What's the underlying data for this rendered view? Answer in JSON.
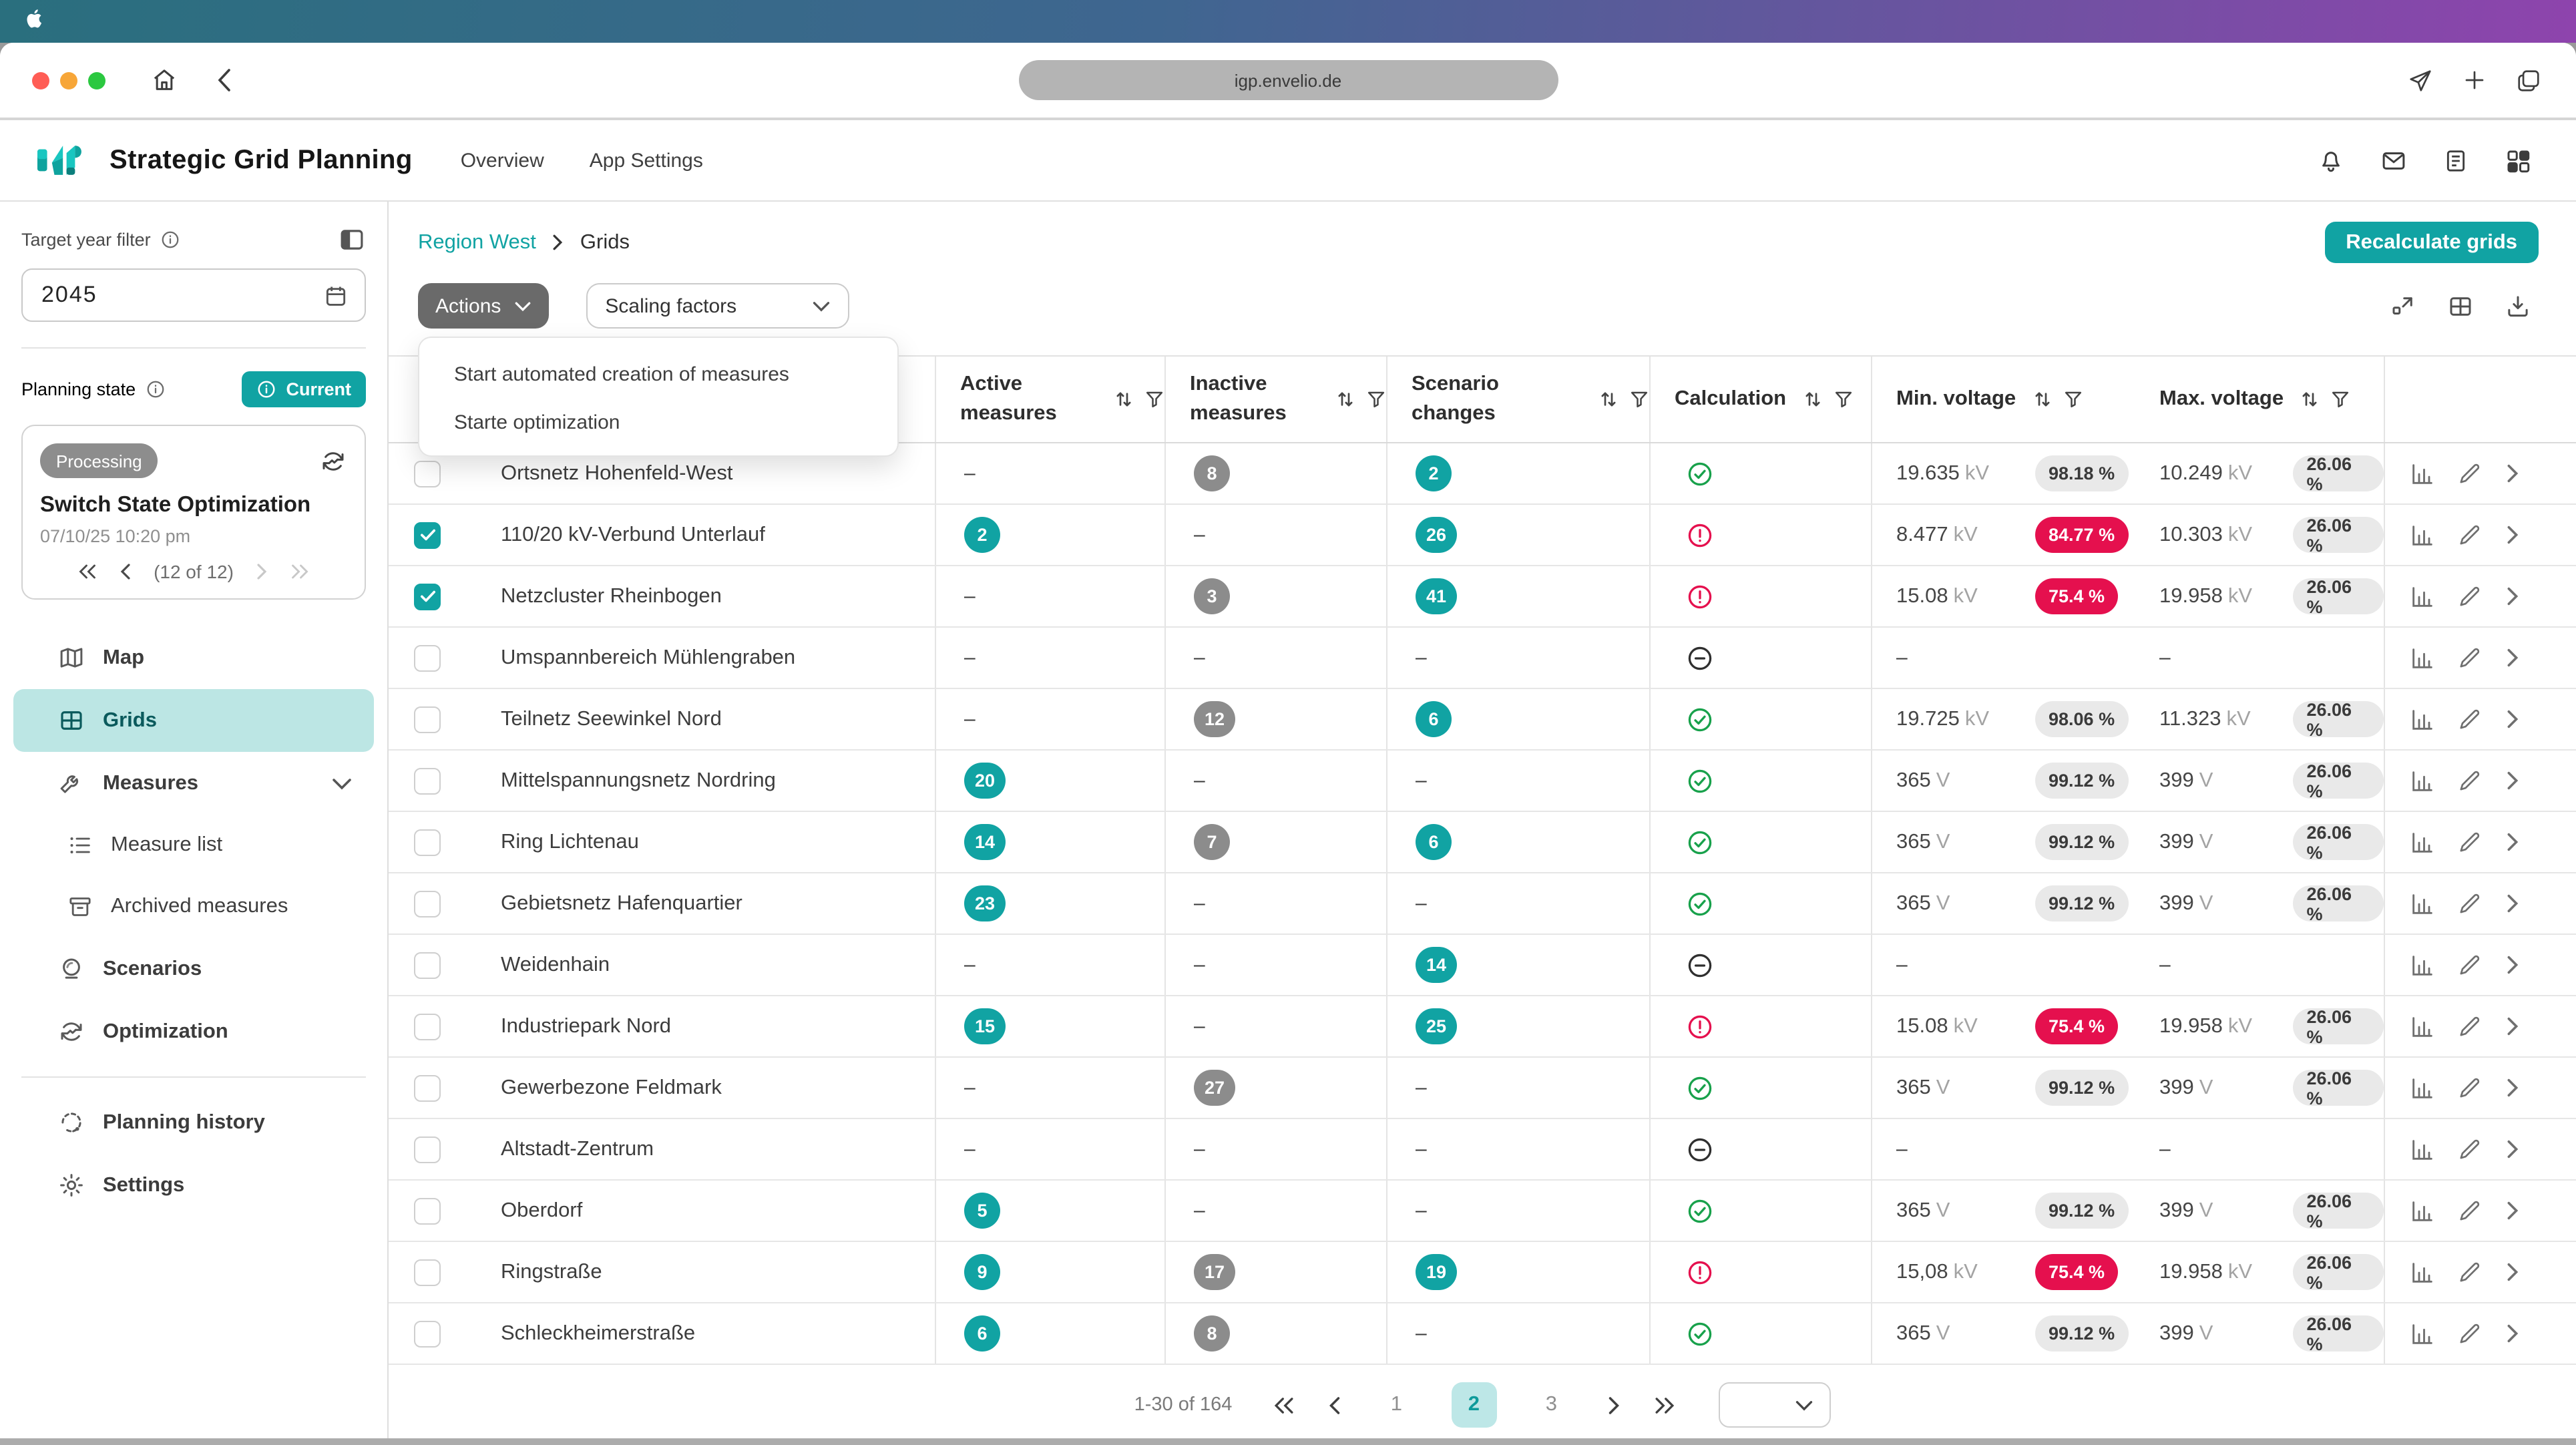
{
  "colors": {
    "accent": "#11a3a3",
    "accent_light": "#bce6e4",
    "red": "#e5104e",
    "green": "#18a14b",
    "gray_badge": "#8c8c8c",
    "menubar_gradient_left": "#2a6f7e",
    "menubar_gradient_right": "#8e44ad"
  },
  "browser": {
    "url": "igp.envelio.de"
  },
  "app_header": {
    "title": "Strategic Grid Planning",
    "nav": [
      {
        "label": "Overview"
      },
      {
        "label": "App Settings"
      }
    ]
  },
  "sidebar": {
    "target_year_label": "Target year filter",
    "target_year_value": "2045",
    "planning_state_label": "Planning state",
    "current_badge_label": "Current",
    "card": {
      "status": "Processing",
      "title": "Switch State Optimization",
      "date": "07/10/25 10:20 pm",
      "pager_count": "(12 of 12)"
    },
    "items": [
      {
        "label": "Map"
      },
      {
        "label": "Grids"
      },
      {
        "label": "Measures"
      },
      {
        "label": "Measure list"
      },
      {
        "label": "Archived measures"
      },
      {
        "label": "Scenarios"
      },
      {
        "label": "Optimization"
      },
      {
        "label": "Planning history"
      },
      {
        "label": "Settings"
      }
    ]
  },
  "main": {
    "breadcrumb": {
      "root": "Region West",
      "current": "Grids"
    },
    "recalculate_label": "Recalculate grids",
    "actions_label": "Actions",
    "scaling_label": "Scaling factors",
    "actions_menu": [
      {
        "label": "Start automated creation of measures"
      },
      {
        "label": "Starte optimization"
      }
    ],
    "columns": [
      {
        "label": "Active measures"
      },
      {
        "label": "Inactive measures"
      },
      {
        "label": "Scenario changes"
      },
      {
        "label": "Calculation"
      },
      {
        "label": "Min. voltage"
      },
      {
        "label": "Max. voltage"
      }
    ],
    "rows": [
      {
        "name": "Ortsnetz Hohenfeld-West",
        "checked": false,
        "active": null,
        "inactive": "8",
        "scenario": "2",
        "calc": "ok",
        "min": {
          "value": "19.635",
          "unit": "kV",
          "pct": "98.18 %",
          "alert": false
        },
        "max": {
          "value": "10.249",
          "unit": "kV",
          "pct": "26.06 %"
        }
      },
      {
        "name": "110/20 kV-Verbund Unterlauf",
        "checked": true,
        "active": "2",
        "inactive": null,
        "scenario": "26",
        "calc": "error",
        "min": {
          "value": "8.477",
          "unit": "kV",
          "pct": "84.77 %",
          "alert": true
        },
        "max": {
          "value": "10.303",
          "unit": "kV",
          "pct": "26.06 %"
        }
      },
      {
        "name": "Netzcluster Rheinbogen",
        "checked": true,
        "active": null,
        "inactive": "3",
        "scenario": "41",
        "calc": "error",
        "min": {
          "value": "15.08",
          "unit": "kV",
          "pct": "75.4 %",
          "alert": true
        },
        "max": {
          "value": "19.958",
          "unit": "kV",
          "pct": "26.06 %"
        }
      },
      {
        "name": "Umspannbereich Mühlengraben",
        "checked": false,
        "active": null,
        "inactive": null,
        "scenario": null,
        "calc": "none",
        "min": null,
        "max": null
      },
      {
        "name": "Teilnetz Seewinkel Nord",
        "checked": false,
        "active": null,
        "inactive": "12",
        "scenario": "6",
        "calc": "ok",
        "min": {
          "value": "19.725",
          "unit": "kV",
          "pct": "98.06 %",
          "alert": false
        },
        "max": {
          "value": "11.323",
          "unit": "kV",
          "pct": "26.06 %"
        }
      },
      {
        "name": "Mittelspannungsnetz Nordring",
        "checked": false,
        "active": "20",
        "inactive": null,
        "scenario": null,
        "calc": "ok",
        "min": {
          "value": "365",
          "unit": "V",
          "pct": "99.12 %",
          "alert": false
        },
        "max": {
          "value": "399",
          "unit": "V",
          "pct": "26.06 %"
        }
      },
      {
        "name": "Ring Lichtenau",
        "checked": false,
        "active": "14",
        "inactive": "7",
        "scenario": "6",
        "calc": "ok",
        "min": {
          "value": "365",
          "unit": "V",
          "pct": "99.12 %",
          "alert": false
        },
        "max": {
          "value": "399",
          "unit": "V",
          "pct": "26.06 %"
        }
      },
      {
        "name": "Gebietsnetz Hafenquartier",
        "checked": false,
        "active": "23",
        "inactive": null,
        "scenario": null,
        "calc": "ok",
        "min": {
          "value": "365",
          "unit": "V",
          "pct": "99.12 %",
          "alert": false
        },
        "max": {
          "value": "399",
          "unit": "V",
          "pct": "26.06 %"
        }
      },
      {
        "name": "Weidenhain",
        "checked": false,
        "active": null,
        "inactive": null,
        "scenario": "14",
        "calc": "none",
        "min": null,
        "max": null
      },
      {
        "name": "Industriepark Nord",
        "checked": false,
        "active": "15",
        "inactive": null,
        "scenario": "25",
        "calc": "error",
        "min": {
          "value": "15.08",
          "unit": "kV",
          "pct": "75.4 %",
          "alert": true
        },
        "max": {
          "value": "19.958",
          "unit": "kV",
          "pct": "26.06 %"
        }
      },
      {
        "name": "Gewerbezone Feldmark",
        "checked": false,
        "active": null,
        "inactive": "27",
        "scenario": null,
        "calc": "ok",
        "min": {
          "value": "365",
          "unit": "V",
          "pct": "99.12 %",
          "alert": false
        },
        "max": {
          "value": "399",
          "unit": "V",
          "pct": "26.06 %"
        }
      },
      {
        "name": "Altstadt-Zentrum",
        "checked": false,
        "active": null,
        "inactive": null,
        "scenario": null,
        "calc": "none",
        "min": null,
        "max": null
      },
      {
        "name": "Oberdorf",
        "checked": false,
        "active": "5",
        "inactive": null,
        "scenario": null,
        "calc": "ok",
        "min": {
          "value": "365",
          "unit": "V",
          "pct": "99.12 %",
          "alert": false
        },
        "max": {
          "value": "399",
          "unit": "V",
          "pct": "26.06 %"
        }
      },
      {
        "name": "Ringstraße",
        "checked": false,
        "active": "9",
        "inactive": "17",
        "scenario": "19",
        "calc": "error",
        "min": {
          "value": "15,08",
          "unit": "kV",
          "pct": "75.4 %",
          "alert": true
        },
        "max": {
          "value": "19.958",
          "unit": "kV",
          "pct": "26.06 %"
        }
      },
      {
        "name": "Schleckheimerstraße",
        "checked": false,
        "active": "6",
        "inactive": "8",
        "scenario": null,
        "calc": "ok",
        "min": {
          "value": "365",
          "unit": "V",
          "pct": "99.12 %",
          "alert": false
        },
        "max": {
          "value": "399",
          "unit": "V",
          "pct": "26.06 %"
        }
      }
    ],
    "pagination": {
      "summary": "1-30 of 164",
      "pages": [
        "1",
        "2",
        "3"
      ],
      "current": "2"
    }
  }
}
